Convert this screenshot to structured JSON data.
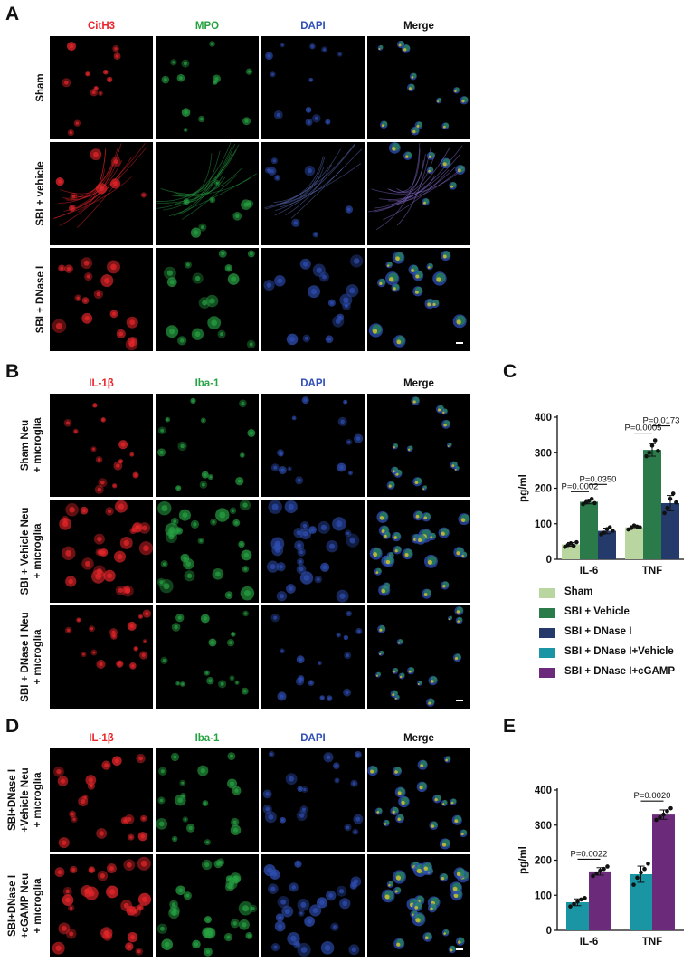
{
  "panels": {
    "A": {
      "letter": "A",
      "columns": [
        "CitH3",
        "MPO",
        "DAPI",
        "Merge"
      ],
      "rows": [
        "Sham",
        "SBI + vehicle",
        "SBI + DNase I"
      ]
    },
    "B": {
      "letter": "B",
      "columns": [
        "IL-1β",
        "Iba-1",
        "DAPI",
        "Merge"
      ],
      "rows": [
        [
          "Sham Neu",
          "+ microglia"
        ],
        [
          "SBI + Vehicle Neu",
          "+ microglia"
        ],
        [
          "SBI + DNase I Neu",
          "+ microglia"
        ]
      ]
    },
    "D": {
      "letter": "D",
      "columns": [
        "IL-1β",
        "Iba-1",
        "DAPI",
        "Merge"
      ],
      "rows": [
        [
          "SBI+DNase I",
          "+Vehicle Neu",
          "+ microglia"
        ],
        [
          "SBI+DNase I",
          "+cGAMP Neu",
          "+ microglia"
        ]
      ]
    }
  },
  "colors": {
    "red": "#e8262b",
    "green": "#27a243",
    "blue": "#2f4fb5",
    "sham": "#b9d5a0",
    "sbi_vehicle": "#2a7a4a",
    "sbi_dnase": "#233a6b",
    "sbi_dnase_vehicle": "#1a95a4",
    "sbi_dnase_cgamp": "#6b2a7a"
  },
  "legend": {
    "items": [
      {
        "label": "Sham",
        "color": "#b9d5a0"
      },
      {
        "label": "SBI + Vehicle",
        "color": "#2a7a4a"
      },
      {
        "label": "SBI + DNase I",
        "color": "#233a6b"
      },
      {
        "label": "SBI + DNase I+Vehicle",
        "color": "#1a95a4"
      },
      {
        "label": "SBI + DNase I+cGAMP",
        "color": "#6b2a7a"
      }
    ]
  },
  "chart_data": [
    {
      "panel": "C",
      "type": "bar",
      "categories": [
        "IL-6",
        "TNF"
      ],
      "ylabel": "pg/ml",
      "ylim": [
        0,
        400
      ],
      "yticks": [
        0,
        100,
        200,
        300,
        400
      ],
      "series": [
        {
          "name": "Sham",
          "color": "#b9d5a0",
          "values": [
            42,
            90
          ],
          "points": [
            [
              35,
              40,
              45,
              38,
              48
            ],
            [
              84,
              88,
              95,
              92,
              90
            ]
          ]
        },
        {
          "name": "SBI + Vehicle",
          "color": "#2a7a4a",
          "values": [
            162,
            308
          ],
          "points": [
            [
              155,
              160,
              165,
              170,
              158
            ],
            [
              290,
              300,
              320,
              335,
              305
            ]
          ]
        },
        {
          "name": "SBI + DNase I",
          "color": "#233a6b",
          "values": [
            80,
            158
          ],
          "points": [
            [
              70,
              75,
              85,
              90,
              80
            ],
            [
              130,
              145,
              170,
              185,
              160
            ]
          ]
        }
      ],
      "annotations": [
        {
          "text": "P=0.0002",
          "category": "IL-6",
          "between": [
            0,
            1
          ]
        },
        {
          "text": "P=0.0350",
          "category": "IL-6",
          "between": [
            1,
            2
          ]
        },
        {
          "text": "P=0.0005",
          "category": "TNF",
          "between": [
            0,
            1
          ]
        },
        {
          "text": "P=0.0173",
          "category": "TNF",
          "between": [
            1,
            2
          ]
        }
      ]
    },
    {
      "panel": "E",
      "type": "bar",
      "categories": [
        "IL-6",
        "TNF"
      ],
      "ylabel": "pg/ml",
      "ylim": [
        0,
        400
      ],
      "yticks": [
        0,
        100,
        200,
        300,
        400
      ],
      "series": [
        {
          "name": "SBI + DNase I+Vehicle",
          "color": "#1a95a4",
          "values": [
            80,
            160
          ],
          "points": [
            [
              68,
              75,
              82,
              88,
              92
            ],
            [
              130,
              150,
              165,
              175,
              190
            ]
          ]
        },
        {
          "name": "SBI + DNase I+cGAMP",
          "color": "#6b2a7a",
          "values": [
            168,
            330
          ],
          "points": [
            [
              155,
              162,
              170,
              175,
              182
            ],
            [
              315,
              322,
              330,
              340,
              348
            ]
          ]
        }
      ],
      "annotations": [
        {
          "text": "P=0.0022",
          "category": "IL-6",
          "between": [
            0,
            1
          ]
        },
        {
          "text": "P=0.0020",
          "category": "TNF",
          "between": [
            0,
            1
          ]
        }
      ]
    }
  ],
  "chart_letters": {
    "C": "C",
    "E": "E"
  }
}
